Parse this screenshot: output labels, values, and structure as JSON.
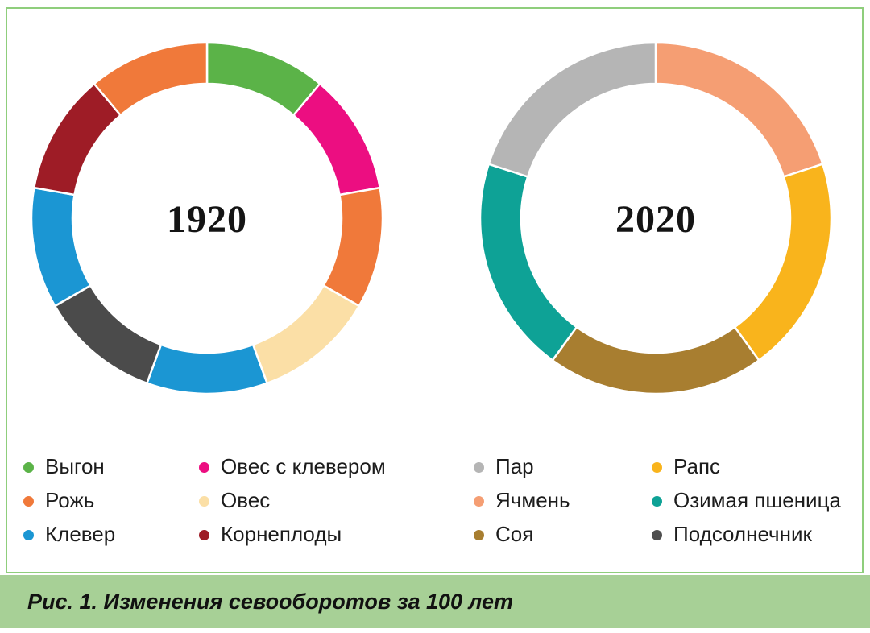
{
  "figure": {
    "frame_color": "#8fce7c",
    "caption": {
      "text": "Рис. 1. Изменения севооборотов за 100 лет",
      "background_color": "#a7d096"
    }
  },
  "chart_data": [
    {
      "type": "pie",
      "variant": "donut",
      "title": "1920",
      "center_label": "1920",
      "start_angle_deg": 0,
      "direction": "clockwise",
      "segments": [
        {
          "label": "Выгон",
          "color": "#5bb348",
          "value": 1
        },
        {
          "label": "Овес с клевером",
          "color": "#ec0e81",
          "value": 1
        },
        {
          "label": "Рожь",
          "color": "#f0793a",
          "value": 1
        },
        {
          "label": "Овес",
          "color": "#fbdfa6",
          "value": 1
        },
        {
          "label": "Клевер",
          "color": "#1b96d3",
          "value": 1
        },
        {
          "label": "Подсолнечник",
          "color": "#4b4b4b",
          "value": 1
        },
        {
          "label": "Клевер",
          "color": "#1b96d3",
          "value": 1
        },
        {
          "label": "Корнеплоды",
          "color": "#9e1c26",
          "value": 1
        },
        {
          "label": "Рожь",
          "color": "#f0793a",
          "value": 1
        }
      ]
    },
    {
      "type": "pie",
      "variant": "donut",
      "title": "2020",
      "center_label": "2020",
      "start_angle_deg": 0,
      "direction": "clockwise",
      "segments": [
        {
          "label": "Ячмень",
          "color": "#f59e73",
          "value": 1
        },
        {
          "label": "Рапс",
          "color": "#f9b41c",
          "value": 1
        },
        {
          "label": "Соя",
          "color": "#a87e30",
          "value": 1
        },
        {
          "label": "Озимая пшеница",
          "color": "#0ea296",
          "value": 1
        },
        {
          "label": "Пар",
          "color": "#b5b5b5",
          "value": 1
        }
      ]
    }
  ],
  "legends": [
    {
      "chart": "1920",
      "columns": [
        {
          "items": [
            {
              "label": "Выгон",
              "color": "#5bb348"
            },
            {
              "label": "Рожь",
              "color": "#f0793a"
            },
            {
              "label": "Клевер",
              "color": "#1b96d3"
            }
          ]
        },
        {
          "items": [
            {
              "label": "Овес с клевером",
              "color": "#ec0e81"
            },
            {
              "label": "Овес",
              "color": "#fbdfa6"
            },
            {
              "label": "Корнеплоды",
              "color": "#9e1c26"
            }
          ]
        }
      ]
    },
    {
      "chart": "2020",
      "columns": [
        {
          "items": [
            {
              "label": "Пар",
              "color": "#b5b5b5"
            },
            {
              "label": "Ячмень",
              "color": "#f59e73"
            },
            {
              "label": "Соя",
              "color": "#a87e30"
            }
          ]
        },
        {
          "items": [
            {
              "label": "Рапс",
              "color": "#f9b41c"
            },
            {
              "label": "Озимая пшеница",
              "color": "#0ea296"
            },
            {
              "label": "Подсолнечник",
              "color": "#4f4f4f"
            }
          ]
        }
      ]
    }
  ]
}
